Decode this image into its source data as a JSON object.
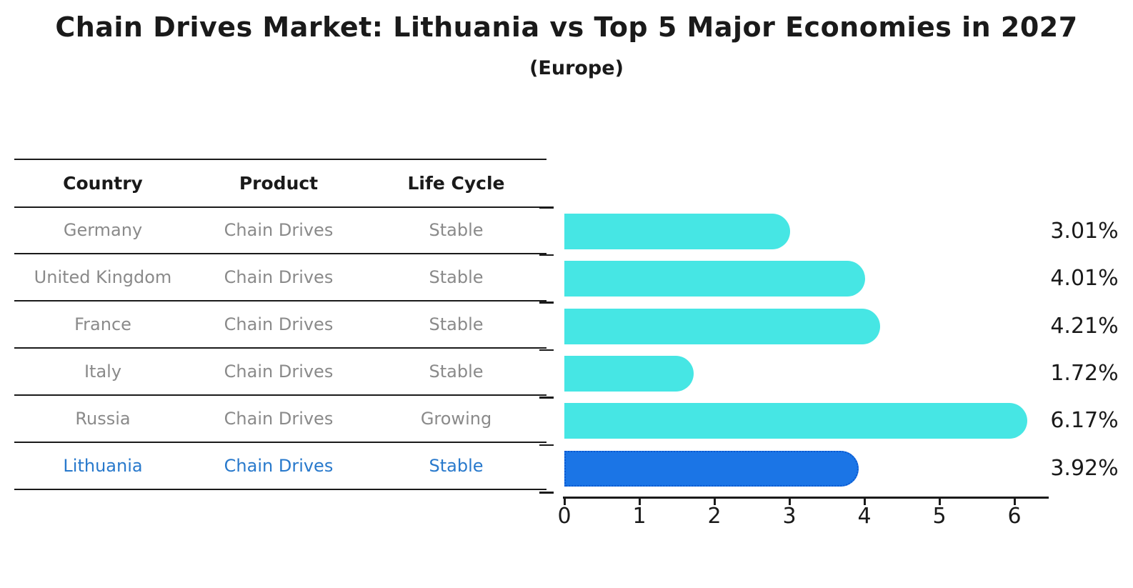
{
  "title": "Chain Drives Market: Lithuania vs Top 5 Major Economies in 2027",
  "subtitle": "(Europe)",
  "table": {
    "headers": [
      "Country",
      "Product",
      "Life Cycle"
    ],
    "rows": [
      {
        "country": "Germany",
        "product": "Chain Drives",
        "life_cycle": "Stable"
      },
      {
        "country": "United Kingdom",
        "product": "Chain Drives",
        "life_cycle": "Stable"
      },
      {
        "country": "France",
        "product": "Chain Drives",
        "life_cycle": "Stable"
      },
      {
        "country": "Italy",
        "product": "Chain Drives",
        "life_cycle": "Stable"
      },
      {
        "country": "Russia",
        "product": "Chain Drives",
        "life_cycle": "Growing"
      },
      {
        "country": "Lithuania",
        "product": "Chain Drives",
        "life_cycle": "Stable"
      }
    ],
    "highlighted_row": "Lithuania"
  },
  "chart_data": {
    "type": "bar",
    "orientation": "horizontal",
    "title": "Chain Drives Market: Lithuania vs Top 5 Major Economies in 2027",
    "subtitle": "(Europe)",
    "categories": [
      "Germany",
      "United Kingdom",
      "France",
      "Italy",
      "Russia",
      "Lithuania"
    ],
    "values": [
      3.01,
      4.01,
      4.21,
      1.72,
      6.17,
      3.92
    ],
    "value_labels": [
      "3.01%",
      "4.01%",
      "4.21%",
      "1.72%",
      "6.17%",
      "3.92%"
    ],
    "x_ticks": [
      "0",
      "1",
      "2",
      "3",
      "4",
      "5",
      "6"
    ],
    "xlim": [
      0,
      6.45
    ],
    "xlabel": "",
    "ylabel": "",
    "grid": false,
    "legend": false,
    "highlight_index": 5,
    "colors": {
      "bar": "#46e6e4",
      "highlight_bar": "#1b75e6",
      "highlight_border": "#0a58d0",
      "highlight_text": "#2879cc",
      "text": "#1a1a1a",
      "muted_text": "#8a8a8a"
    }
  }
}
